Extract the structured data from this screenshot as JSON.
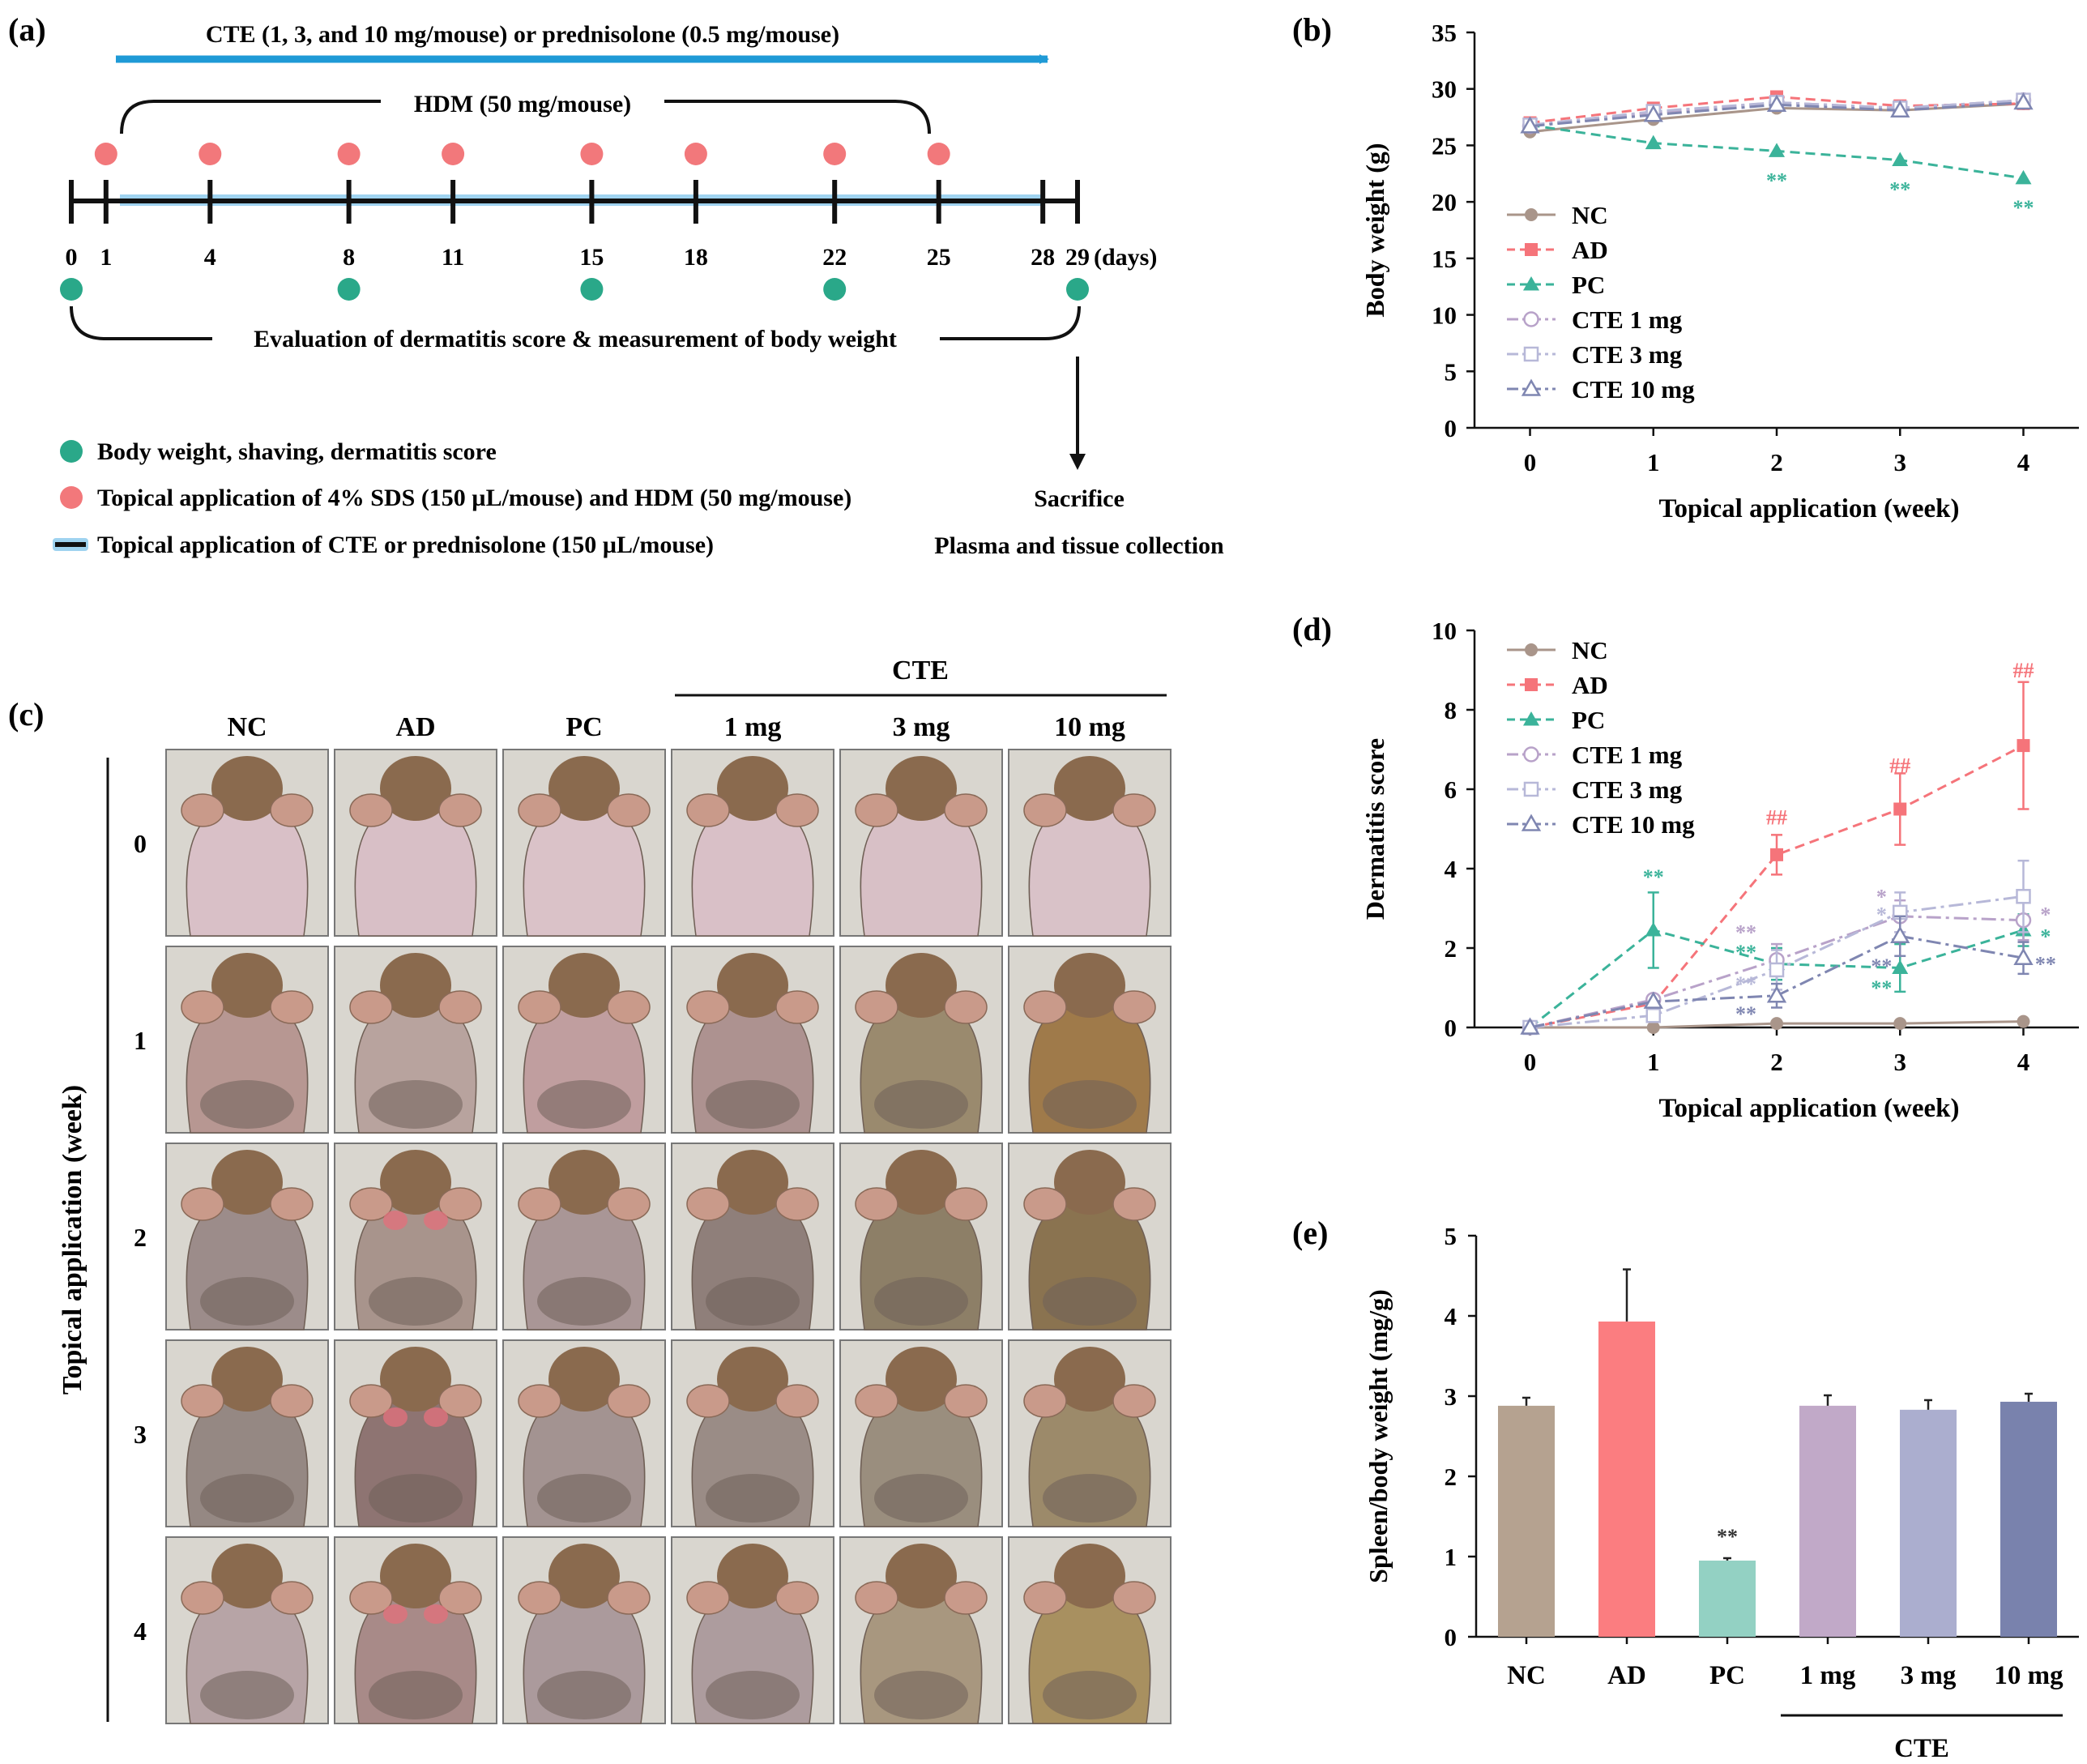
{
  "panels": {
    "a": {
      "label": "(a)",
      "treatment_text": "CTE (1, 3, and 10 mg/mouse) or prednisolone (0.5 mg/mouse)",
      "hdm_text": "HDM (50 mg/mouse)",
      "days": [
        "0",
        "1",
        "4",
        "8",
        "11",
        "15",
        "18",
        "22",
        "25",
        "28",
        "29"
      ],
      "days_unit": "(days)",
      "evaluation_text": "Evaluation of dermatitis score & measurement of body weight",
      "legend": [
        "Body weight, shaving, dermatitis score",
        "Topical application of 4% SDS (150 µL/mouse) and HDM (50 mg/mouse)",
        "Topical application of CTE or prednisolone (150 µL/mouse)"
      ],
      "sacrifice": "Sacrifice",
      "collection": "Plasma and tissue collection",
      "colors": {
        "arrow": "#1f9ad6",
        "pink": "#f2787b",
        "green": "#2aa889",
        "band": "#9fd3f0"
      }
    },
    "b": {
      "label": "(b)"
    },
    "c": {
      "label": "(c)",
      "cte_header": "CTE",
      "columns": [
        "NC",
        "AD",
        "PC",
        "1 mg",
        "3 mg",
        "10 mg"
      ],
      "rows": [
        "0",
        "1",
        "2",
        "3",
        "4"
      ],
      "ylabel": "Topical application (week)"
    },
    "d": {
      "label": "(d)"
    },
    "e": {
      "label": "(e)"
    }
  },
  "series_colors": {
    "NC": "#a9958a",
    "AD": "#f5747a",
    "PC": "#3bb39a",
    "CTE 1 mg": "#b8a2c9",
    "CTE 3 mg": "#b7b8d8",
    "CTE 10 mg": "#7f86b1"
  },
  "chart_data": [
    {
      "id": "b",
      "type": "line",
      "xlabel": "Topical application (week)",
      "ylabel": "Body weight (g)",
      "x": [
        0,
        1,
        2,
        3,
        4
      ],
      "ylim": [
        0,
        35
      ],
      "yticks": [
        0,
        5,
        10,
        15,
        20,
        25,
        30,
        35
      ],
      "series": [
        {
          "name": "NC",
          "values": [
            26.2,
            27.3,
            28.3,
            28.1,
            28.7
          ]
        },
        {
          "name": "AD",
          "values": [
            27.0,
            28.3,
            29.3,
            28.5,
            28.7
          ]
        },
        {
          "name": "PC",
          "values": [
            26.8,
            25.2,
            24.5,
            23.7,
            22.1
          ]
        },
        {
          "name": "CTE 1 mg",
          "values": [
            26.7,
            27.9,
            28.8,
            28.3,
            29.0
          ]
        },
        {
          "name": "CTE 3 mg",
          "values": [
            26.8,
            28.0,
            28.8,
            28.3,
            29.0
          ]
        },
        {
          "name": "CTE 10 mg",
          "values": [
            26.7,
            27.7,
            28.6,
            28.1,
            28.8
          ]
        }
      ],
      "annotations": [
        {
          "x": 2,
          "y": 24.5,
          "text": "**",
          "series": "PC"
        },
        {
          "x": 3,
          "y": 23.7,
          "text": "**",
          "series": "PC"
        },
        {
          "x": 4,
          "y": 22.1,
          "text": "**",
          "series": "PC"
        }
      ]
    },
    {
      "id": "d",
      "type": "line",
      "xlabel": "Topical application (week)",
      "ylabel": "Dermatitis score",
      "x": [
        0,
        1,
        2,
        3,
        4
      ],
      "ylim": [
        0,
        10
      ],
      "yticks": [
        0,
        2,
        4,
        6,
        8,
        10
      ],
      "series": [
        {
          "name": "NC",
          "values": [
            0,
            0.0,
            0.1,
            0.1,
            0.15
          ],
          "err": [
            0,
            0,
            0,
            0,
            0
          ]
        },
        {
          "name": "AD",
          "values": [
            0,
            0.6,
            4.35,
            5.5,
            7.1
          ],
          "err": [
            0,
            0,
            0.5,
            0.9,
            1.6
          ]
        },
        {
          "name": "PC",
          "values": [
            0,
            2.45,
            1.6,
            1.5,
            2.45
          ],
          "err": [
            0,
            0.95,
            0.4,
            0.6,
            0.4
          ]
        },
        {
          "name": "CTE 1 mg",
          "values": [
            0,
            0.7,
            1.7,
            2.8,
            2.7
          ],
          "err": [
            0,
            0,
            0.4,
            0.4,
            0.5
          ]
        },
        {
          "name": "CTE 3 mg",
          "values": [
            0,
            0.3,
            1.45,
            2.9,
            3.3
          ],
          "err": [
            0,
            0,
            0.5,
            0.5,
            0.9
          ]
        },
        {
          "name": "CTE 10 mg",
          "values": [
            0,
            0.65,
            0.8,
            2.3,
            1.75
          ],
          "err": [
            0,
            0,
            0.3,
            0.5,
            0.4
          ]
        }
      ],
      "annotations": [
        {
          "x": 1,
          "y": 3.8,
          "text": "**",
          "series": "PC"
        },
        {
          "x": 2,
          "y": 5.3,
          "text": "##",
          "series": "AD"
        },
        {
          "x": 3,
          "y": 6.6,
          "text": "##",
          "series": "AD"
        },
        {
          "x": 4,
          "y": 9.0,
          "text": "##",
          "series": "AD"
        },
        {
          "x": 1.75,
          "y": 2.4,
          "text": "**",
          "series": "CTE 1 mg"
        },
        {
          "x": 1.75,
          "y": 1.9,
          "text": "**",
          "series": "PC"
        },
        {
          "x": 1.75,
          "y": 1.1,
          "text": "**",
          "series": "CTE 3 mg"
        },
        {
          "x": 1.75,
          "y": 0.35,
          "text": "**",
          "series": "CTE 10 mg"
        },
        {
          "x": 2.85,
          "y": 3.3,
          "text": "*",
          "series": "CTE 1 mg"
        },
        {
          "x": 2.85,
          "y": 2.85,
          "text": "*",
          "series": "CTE 3 mg"
        },
        {
          "x": 2.85,
          "y": 1.55,
          "text": "**",
          "series": "CTE 10 mg"
        },
        {
          "x": 2.85,
          "y": 1.0,
          "text": "**",
          "series": "PC"
        },
        {
          "x": 4.18,
          "y": 2.85,
          "text": "*",
          "series": "CTE 1 mg"
        },
        {
          "x": 4.18,
          "y": 2.3,
          "text": "*",
          "series": "PC"
        },
        {
          "x": 4.18,
          "y": 1.6,
          "text": "**",
          "series": "CTE 10 mg"
        }
      ],
      "legend": [
        "NC",
        "AD",
        "PC",
        "CTE 1 mg",
        "CTE 3 mg",
        "CTE 10 mg"
      ]
    },
    {
      "id": "e",
      "type": "bar",
      "ylabel": "Spleen/body weight (mg/g)",
      "categories": [
        "NC",
        "AD",
        "PC",
        "1 mg",
        "3 mg",
        "10 mg"
      ],
      "values": [
        2.88,
        3.93,
        0.95,
        2.88,
        2.83,
        2.93
      ],
      "err": [
        0.1,
        0.65,
        0.03,
        0.13,
        0.12,
        0.1
      ],
      "colors": [
        "#b5a290",
        "#fb7d80",
        "#93d1c3",
        "#c1a9c8",
        "#abaecf",
        "#7982ad"
      ],
      "ylim": [
        0,
        5
      ],
      "yticks": [
        0,
        1,
        2,
        3,
        4,
        5
      ],
      "group_label": "CTE",
      "annotations": [
        {
          "index": 2,
          "text": "**"
        }
      ]
    }
  ]
}
